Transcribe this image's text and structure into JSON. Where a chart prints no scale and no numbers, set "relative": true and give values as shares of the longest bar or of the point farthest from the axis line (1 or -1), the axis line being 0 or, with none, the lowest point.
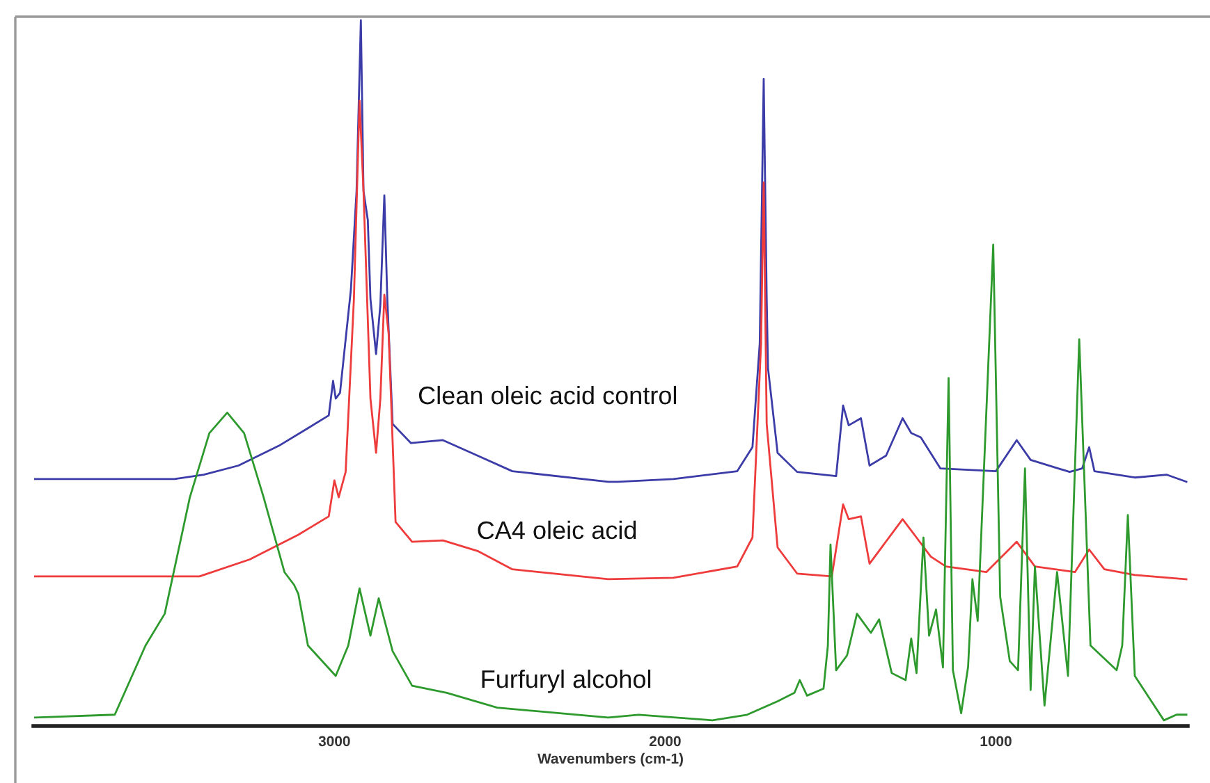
{
  "chart_data": {
    "type": "line",
    "xlabel": "Wavenumbers (cm-1)",
    "relative": true,
    "xlim": [
      3910,
      420
    ],
    "xticks": [
      3000,
      2000,
      1000
    ],
    "grid": false,
    "legend": false,
    "marker": "none",
    "line_style": "solid",
    "series": [
      {
        "name": "Clean oleic acid control",
        "color": "#3c3ca8",
        "x": [
          3905,
          3483,
          3395,
          3290,
          3168,
          3080,
          3017,
          3004,
          2996,
          2983,
          2950,
          2933,
          2920,
          2912,
          2899,
          2891,
          2874,
          2861,
          2849,
          2840,
          2824,
          2769,
          2672,
          2567,
          2462,
          2172,
          2143,
          1975,
          1782,
          1736,
          1714,
          1702,
          1693,
          1689,
          1660,
          1601,
          1483,
          1462,
          1445,
          1408,
          1382,
          1332,
          1282,
          1256,
          1227,
          1168,
          1000,
          937,
          895,
          777,
          739,
          718,
          702,
          580,
          483,
          424
        ],
        "values": [
          0.35,
          0.35,
          0.356,
          0.369,
          0.397,
          0.422,
          0.44,
          0.489,
          0.464,
          0.472,
          0.619,
          0.758,
          1.0,
          0.758,
          0.717,
          0.605,
          0.527,
          0.597,
          0.752,
          0.605,
          0.428,
          0.401,
          0.405,
          0.383,
          0.361,
          0.346,
          0.346,
          0.35,
          0.361,
          0.395,
          0.542,
          0.917,
          0.605,
          0.507,
          0.387,
          0.36,
          0.354,
          0.454,
          0.426,
          0.436,
          0.369,
          0.383,
          0.436,
          0.415,
          0.409,
          0.365,
          0.361,
          0.405,
          0.377,
          0.36,
          0.365,
          0.395,
          0.361,
          0.352,
          0.356,
          0.346
        ]
      },
      {
        "name": "CA4 oleic acid",
        "color": "#ee3b3b",
        "x": [
          3905,
          3408,
          3256,
          3109,
          3017,
          3000,
          2987,
          2966,
          2941,
          2924,
          2912,
          2891,
          2874,
          2861,
          2849,
          2836,
          2815,
          2765,
          2672,
          2567,
          2462,
          2172,
          1975,
          1782,
          1736,
          1710,
          1702,
          1693,
          1660,
          1601,
          1496,
          1462,
          1445,
          1408,
          1382,
          1282,
          1240,
          1197,
          1151,
          1029,
          937,
          882,
          761,
          718,
          672,
          580,
          424
        ],
        "values": [
          0.212,
          0.212,
          0.236,
          0.271,
          0.297,
          0.348,
          0.324,
          0.36,
          0.605,
          0.886,
          0.758,
          0.464,
          0.387,
          0.464,
          0.611,
          0.556,
          0.289,
          0.261,
          0.263,
          0.248,
          0.222,
          0.208,
          0.21,
          0.226,
          0.267,
          0.542,
          0.77,
          0.428,
          0.253,
          0.216,
          0.212,
          0.314,
          0.293,
          0.297,
          0.23,
          0.293,
          0.267,
          0.24,
          0.226,
          0.218,
          0.261,
          0.226,
          0.218,
          0.25,
          0.222,
          0.214,
          0.208
        ]
      },
      {
        "name": "Furfuryl alcohol",
        "color": "#2e9a2e",
        "x": [
          3905,
          3664,
          3571,
          3513,
          3437,
          3378,
          3324,
          3273,
          3214,
          3151,
          3122,
          3109,
          3080,
          2996,
          2958,
          2924,
          2891,
          2866,
          2824,
          2765,
          2660,
          2508,
          2172,
          2080,
          1857,
          1752,
          1660,
          1609,
          1593,
          1571,
          1521,
          1508,
          1500,
          1483,
          1450,
          1420,
          1378,
          1353,
          1315,
          1273,
          1256,
          1240,
          1219,
          1202,
          1181,
          1160,
          1143,
          1130,
          1105,
          1084,
          1071,
          1055,
          1008,
          987,
          958,
          933,
          912,
          895,
          882,
          853,
          815,
          782,
          748,
          714,
          635,
          618,
          601,
          580,
          492,
          454,
          424
        ],
        "values": [
          0.012,
          0.016,
          0.114,
          0.159,
          0.324,
          0.415,
          0.444,
          0.415,
          0.324,
          0.218,
          0.2,
          0.187,
          0.114,
          0.071,
          0.114,
          0.195,
          0.128,
          0.181,
          0.106,
          0.057,
          0.047,
          0.026,
          0.012,
          0.016,
          0.008,
          0.016,
          0.035,
          0.047,
          0.065,
          0.043,
          0.053,
          0.114,
          0.257,
          0.079,
          0.1,
          0.159,
          0.132,
          0.151,
          0.075,
          0.065,
          0.124,
          0.075,
          0.267,
          0.128,
          0.165,
          0.083,
          0.493,
          0.079,
          0.018,
          0.084,
          0.208,
          0.149,
          0.682,
          0.183,
          0.092,
          0.079,
          0.365,
          0.051,
          0.226,
          0.029,
          0.218,
          0.071,
          0.548,
          0.114,
          0.079,
          0.114,
          0.299,
          0.071,
          0.008,
          0.016,
          0.016
        ]
      }
    ]
  }
}
